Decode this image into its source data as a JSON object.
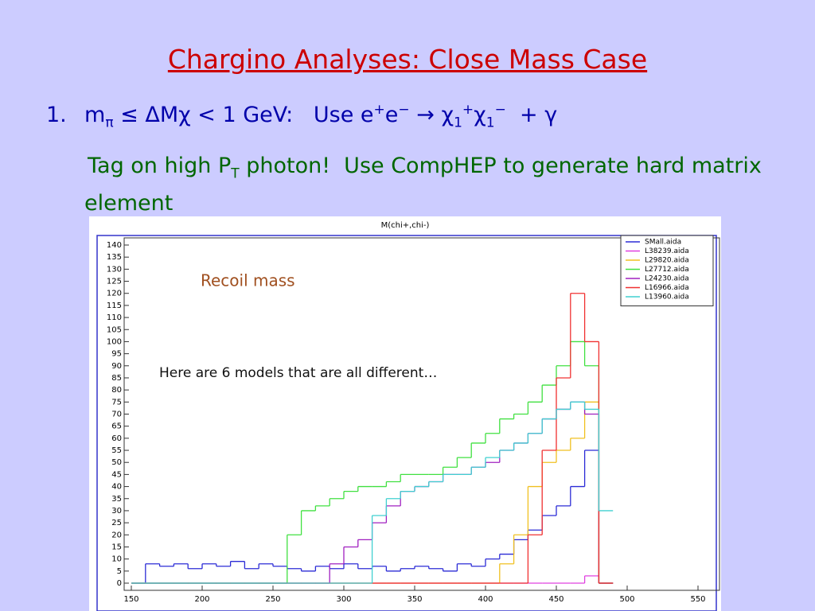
{
  "slide": {
    "title": "Chargino Analyses:  Close Mass Case",
    "item_number": "1.",
    "item_parts": [
      "m",
      "π",
      " ≤ ΔMχ < 1 GeV:   Use e",
      "+",
      "e",
      "−",
      " → χ",
      "1",
      "+",
      "χ",
      "1",
      "−",
      "  + γ"
    ],
    "note_parts": [
      "Tag on high P",
      "T",
      " photon!  Use CompHEP to generate hard matrix element"
    ]
  },
  "chart_data": {
    "type": "histogram",
    "title": "M(chi+,chi-)",
    "annotations": [
      "Recoil mass",
      "Here are 6 models that are all different…"
    ],
    "bins": [
      150,
      160,
      170,
      180,
      190,
      200,
      210,
      220,
      230,
      240,
      250,
      260,
      270,
      280,
      290,
      300,
      310,
      320,
      330,
      340,
      350,
      360,
      370,
      380,
      390,
      400,
      410,
      420,
      430,
      440,
      450,
      460,
      470,
      480,
      490
    ],
    "series": [
      {
        "name": "SMall.aida",
        "color": "#2b2bd6",
        "values": [
          0,
          8,
          7,
          8,
          6,
          8,
          7,
          9,
          6,
          8,
          7,
          6,
          5,
          7,
          6,
          8,
          6,
          7,
          5,
          6,
          7,
          6,
          5,
          8,
          7,
          10,
          12,
          18,
          22,
          28,
          32,
          40,
          55,
          0
        ]
      },
      {
        "name": "L38239.aida",
        "color": "#e040e0",
        "values": [
          0,
          0,
          0,
          0,
          0,
          0,
          0,
          0,
          0,
          0,
          0,
          0,
          0,
          0,
          0,
          0,
          0,
          0,
          0,
          0,
          0,
          0,
          0,
          0,
          0,
          0,
          0,
          0,
          0,
          0,
          0,
          0,
          3,
          0
        ]
      },
      {
        "name": "L29820.aida",
        "color": "#f0c020",
        "values": [
          0,
          0,
          0,
          0,
          0,
          0,
          0,
          0,
          0,
          0,
          0,
          0,
          0,
          0,
          0,
          0,
          0,
          0,
          0,
          0,
          0,
          0,
          0,
          0,
          0,
          0,
          8,
          20,
          40,
          50,
          55,
          60,
          75,
          0
        ]
      },
      {
        "name": "L27712.aida",
        "color": "#40e040",
        "values": [
          0,
          0,
          0,
          0,
          0,
          0,
          0,
          0,
          0,
          0,
          0,
          20,
          30,
          32,
          35,
          38,
          40,
          40,
          42,
          45,
          45,
          45,
          48,
          52,
          58,
          62,
          68,
          70,
          75,
          82,
          90,
          100,
          90,
          0
        ]
      },
      {
        "name": "L24230.aida",
        "color": "#a020c0",
        "values": [
          0,
          0,
          0,
          0,
          0,
          0,
          0,
          0,
          0,
          0,
          0,
          0,
          0,
          0,
          8,
          15,
          18,
          25,
          32,
          38,
          40,
          42,
          45,
          45,
          48,
          50,
          55,
          58,
          62,
          68,
          72,
          75,
          70,
          0
        ]
      },
      {
        "name": "L16966.aida",
        "color": "#f03030",
        "values": [
          0,
          0,
          0,
          0,
          0,
          0,
          0,
          0,
          0,
          0,
          0,
          0,
          0,
          0,
          0,
          0,
          0,
          0,
          0,
          0,
          0,
          0,
          0,
          0,
          0,
          0,
          0,
          0,
          20,
          55,
          85,
          120,
          100,
          0
        ]
      },
      {
        "name": "L13960.aida",
        "color": "#40d0d0",
        "values": [
          0,
          0,
          0,
          0,
          0,
          0,
          0,
          0,
          0,
          0,
          0,
          0,
          0,
          0,
          0,
          0,
          0,
          28,
          35,
          38,
          40,
          42,
          45,
          45,
          48,
          52,
          55,
          58,
          62,
          68,
          72,
          75,
          72,
          30
        ]
      }
    ],
    "xlim": [
      150,
      550
    ],
    "ylim": [
      0,
      140
    ],
    "xticks": [
      150,
      200,
      250,
      300,
      350,
      400,
      450,
      500,
      550
    ],
    "yticks": [
      0,
      5,
      10,
      15,
      20,
      25,
      30,
      35,
      40,
      45,
      50,
      55,
      60,
      65,
      70,
      75,
      80,
      85,
      90,
      95,
      100,
      105,
      110,
      115,
      120,
      125,
      130,
      135,
      140
    ],
    "legend": "top-right"
  }
}
